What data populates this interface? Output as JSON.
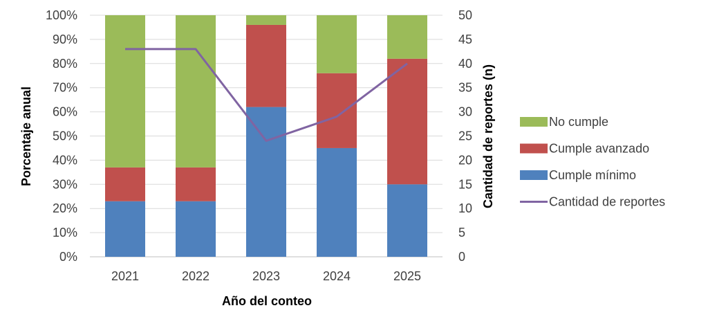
{
  "chart_data": {
    "type": "bar",
    "stacked": true,
    "categories": [
      "2021",
      "2022",
      "2023",
      "2024",
      "2025"
    ],
    "series": [
      {
        "name": "Cumple mínimo",
        "values": [
          23,
          23,
          62,
          45,
          30
        ],
        "color": "#4F81BD"
      },
      {
        "name": "Cumple avanzado",
        "values": [
          14,
          14,
          34,
          31,
          52
        ],
        "color": "#C0504D"
      },
      {
        "name": "No cumple",
        "values": [
          63,
          63,
          4,
          24,
          18
        ],
        "color": "#9BBB59"
      }
    ],
    "line_series": {
      "name": "Cantidad de reportes",
      "axis": "right",
      "values": [
        43,
        43,
        24,
        29,
        40
      ],
      "color": "#8064A2"
    },
    "xlabel": "Año del conteo",
    "ylabel": "Porcentaje anual",
    "y2label": "Cantidad de reportes (n)",
    "ylim": [
      0,
      100
    ],
    "y2lim": [
      0,
      50
    ],
    "yticks": [
      "0%",
      "10%",
      "20%",
      "30%",
      "40%",
      "50%",
      "60%",
      "70%",
      "80%",
      "90%",
      "100%"
    ],
    "y2ticks": [
      "0",
      "5",
      "10",
      "15",
      "20",
      "25",
      "30",
      "35",
      "40",
      "45",
      "50"
    ],
    "grid": true,
    "legend_position": "right",
    "legend": [
      "No cumple",
      "Cumple avanzado",
      "Cumple mínimo",
      "Cantidad de reportes"
    ]
  }
}
